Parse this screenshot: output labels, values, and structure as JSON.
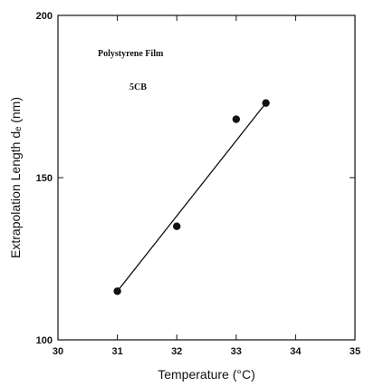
{
  "chart_data": {
    "type": "scatter",
    "title": "",
    "xlabel": "Temperature (°C)",
    "ylabel": "Extrapolation Length dₑ (nm)",
    "xlim": [
      30,
      35
    ],
    "ylim": [
      100,
      200
    ],
    "xticks": [
      "30",
      "31",
      "32",
      "33",
      "34",
      "35"
    ],
    "yticks": [
      "100",
      "150",
      "200"
    ],
    "annotations": [
      "Polystyrene Film",
      "5CB"
    ],
    "grid": false,
    "series": [
      {
        "marker": "filled-circle",
        "color": "#111111",
        "points": [
          {
            "x": 31.0,
            "y": 115
          },
          {
            "x": 32.0,
            "y": 135
          },
          {
            "x": 33.0,
            "y": 168
          },
          {
            "x": 33.5,
            "y": 173
          }
        ]
      }
    ],
    "fit_line": {
      "from": {
        "x": 31.0,
        "y": 115
      },
      "to": {
        "x": 33.5,
        "y": 173
      },
      "color": "#111111"
    }
  }
}
